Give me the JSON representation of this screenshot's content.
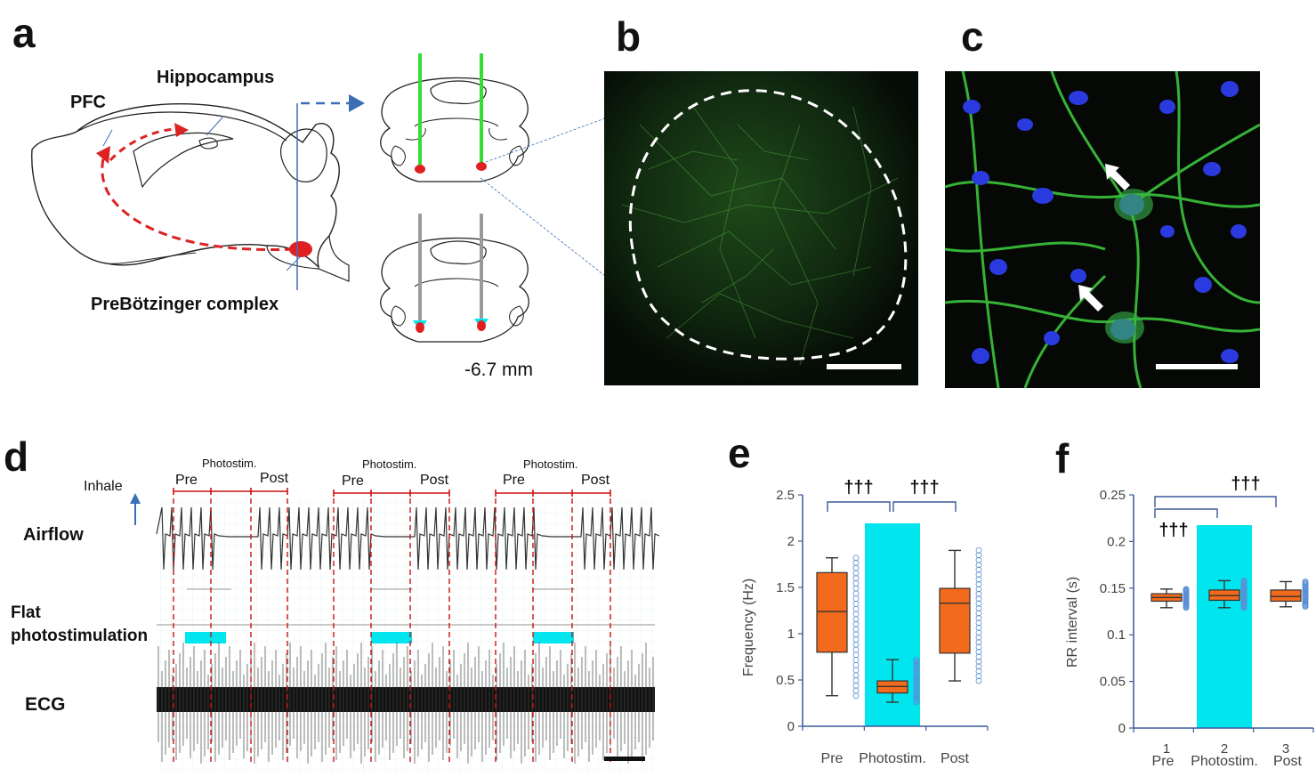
{
  "panels": {
    "a": "a",
    "b": "b",
    "c": "c",
    "d": "d",
    "e": "e",
    "f": "f"
  },
  "panel_a": {
    "pfc": "PFC",
    "hippocampus": "Hippocampus",
    "prebotzinger": "PreBötzinger complex",
    "depth": "-6.7 mm",
    "colors": {
      "pathway": "#dd2222",
      "fiber_active": "#33dd33",
      "fiber_control": "#999999",
      "arrow": "#3a6fb5",
      "light": "#00e5ee"
    }
  },
  "panel_d": {
    "inhale": "Inhale",
    "airflow": "Airflow",
    "flat_line1": "Flat",
    "flat_line2": "photostimulation",
    "ecg": "ECG",
    "blocks": [
      {
        "photostim": "Photostim.",
        "pre": "Pre",
        "post": "Post"
      },
      {
        "photostim": "Photostim.",
        "pre": "Pre",
        "post": "Post"
      },
      {
        "photostim": "Photostim.",
        "pre": "Pre",
        "post": "Post"
      }
    ]
  },
  "chart_data": [
    {
      "type": "box",
      "panel": "e",
      "ylabel": "Frequency (Hz)",
      "ylim": [
        0,
        2.5
      ],
      "yticks": [
        "0",
        "0.5",
        "1",
        "1.5",
        "2",
        "2.5"
      ],
      "categories": [
        "Pre",
        "Photostim.",
        "Post"
      ],
      "significance": [
        "†††",
        "†††"
      ],
      "boxes": [
        {
          "name": "Pre",
          "min": 0.33,
          "q1": 0.8,
          "median": 1.24,
          "q3": 1.66,
          "max": 1.82
        },
        {
          "name": "Photostim.",
          "min": 0.26,
          "q1": 0.36,
          "median": 0.43,
          "q3": 0.49,
          "max": 0.72
        },
        {
          "name": "Post",
          "min": 0.49,
          "q1": 0.79,
          "median": 1.33,
          "q3": 1.49,
          "max": 1.9
        }
      ],
      "highlight": "Photostim."
    },
    {
      "type": "box",
      "panel": "f",
      "ylabel": "RR interval (s)",
      "ylim": [
        0,
        0.25
      ],
      "yticks": [
        "0",
        "0.05",
        "0.1",
        "0.15",
        "0.2",
        "0.25"
      ],
      "xticks": [
        "1",
        "2",
        "3"
      ],
      "categories": [
        "Pre",
        "Photostim.",
        "Post"
      ],
      "significance": [
        "†††",
        "†††"
      ],
      "boxes": [
        {
          "name": "Pre",
          "min": 0.129,
          "q1": 0.136,
          "median": 0.14,
          "q3": 0.144,
          "max": 0.149
        },
        {
          "name": "Photostim.",
          "min": 0.129,
          "q1": 0.137,
          "median": 0.142,
          "q3": 0.148,
          "max": 0.158
        },
        {
          "name": "Post",
          "min": 0.13,
          "q1": 0.136,
          "median": 0.141,
          "q3": 0.148,
          "max": 0.157
        }
      ],
      "highlight": "Photostim."
    }
  ]
}
